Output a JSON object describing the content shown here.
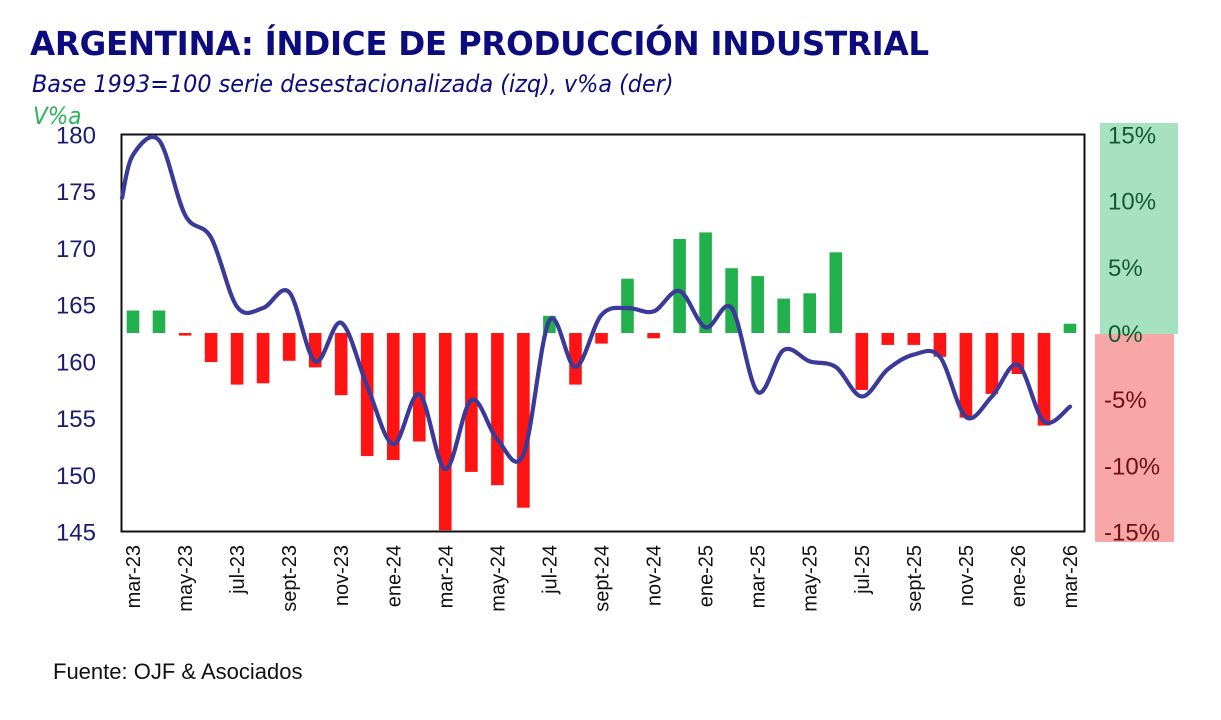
{
  "header": {
    "title": "ARGENTINA: ÍNDICE DE PRODUCCIÓN INDUSTRIAL",
    "subtitle": "Base 1993=100 serie desestacionalizada (izq), v%a (der)",
    "left_unit_label": "V%a"
  },
  "footer": {
    "source": "Fuente: OJF & Asociados"
  },
  "colors": {
    "title": "#0c0c7e",
    "line": "#3a3a98",
    "bar_positive": "#22b04c",
    "bar_negative": "#ff1414",
    "positive_band": "#a6e2c0",
    "negative_band": "#f8a6a6",
    "positive_tick_text": "#145a32",
    "negative_tick_text": "#6e1010"
  },
  "chart_data": {
    "type": "bar+line",
    "title": "ARGENTINA: ÍNDICE DE PRODUCCIÓN INDUSTRIAL",
    "subtitle": "Base 1993=100 serie desestacionalizada (izq), v%a (der)",
    "categories": [
      "mar-23",
      "abr-23",
      "may-23",
      "jun-23",
      "jul-23",
      "ago-23",
      "sept-23",
      "oct-23",
      "nov-23",
      "dic-23",
      "ene-24",
      "feb-24",
      "mar-24",
      "abr-24",
      "may-24",
      "jun-24",
      "jul-24",
      "ago-24",
      "sept-24",
      "oct-24",
      "nov-24",
      "dic-24",
      "ene-25",
      "feb-25",
      "mar-25",
      "abr-25",
      "may-25",
      "jun-25",
      "jul-25",
      "ago-25",
      "sept-25",
      "oct-25",
      "nov-25",
      "dic-25",
      "ene-26",
      "feb-26",
      "mar-26"
    ],
    "x_tick_labels": [
      "mar-23",
      "may-23",
      "jul-23",
      "sept-23",
      "nov-23",
      "ene-24",
      "mar-24",
      "may-24",
      "jul-24",
      "sept-24",
      "nov-24",
      "ene-25",
      "mar-25",
      "may-25",
      "jul-25",
      "sept-25",
      "nov-25",
      "ene-26",
      "mar-26"
    ],
    "series": [
      {
        "name": "Índice (izq)",
        "type": "line",
        "axis": "left",
        "values": [
          178.2,
          179.5,
          172.9,
          170.9,
          164.8,
          164.7,
          166.1,
          160.0,
          163.4,
          157.8,
          152.7,
          157.1,
          150.5,
          156.6,
          153.1,
          151.8,
          163.6,
          159.5,
          164.1,
          164.7,
          164.4,
          166.2,
          163.0,
          164.7,
          157.3,
          161.0,
          160.0,
          159.5,
          156.9,
          159.3,
          160.6,
          160.4,
          155.1,
          156.9,
          159.7,
          154.7,
          156.0
        ]
      },
      {
        "name": "v%a (der)",
        "type": "bar",
        "axis": "right",
        "values": [
          1.7,
          1.7,
          -0.2,
          -2.2,
          -3.9,
          -3.8,
          -2.1,
          -2.6,
          -4.7,
          -9.3,
          -9.6,
          -8.2,
          -14.9,
          -10.5,
          -11.5,
          -13.2,
          1.3,
          -3.9,
          -0.8,
          4.1,
          -0.4,
          7.1,
          7.6,
          4.9,
          4.3,
          2.6,
          3.0,
          6.1,
          -4.3,
          -0.9,
          -0.9,
          -1.8,
          -6.4,
          -4.6,
          -3.1,
          -7.0,
          0.7
        ]
      }
    ],
    "left_axis": {
      "ylim": [
        145,
        180
      ],
      "ticks": [
        180,
        175,
        170,
        165,
        160,
        155,
        150,
        145
      ],
      "tick_labels": [
        "180",
        "175",
        "170",
        "165",
        "160",
        "155",
        "150",
        "145"
      ],
      "label": "V%a"
    },
    "right_axis": {
      "ylim": [
        -15,
        15
      ],
      "ticks": [
        15,
        10,
        5,
        0,
        -5,
        -10,
        -15
      ],
      "tick_labels": [
        "15%",
        "10%",
        "5%",
        "0%",
        "-5%",
        "-10%",
        "-15%"
      ]
    },
    "grid": false,
    "legend": "none",
    "line_start_value": 174.4
  }
}
